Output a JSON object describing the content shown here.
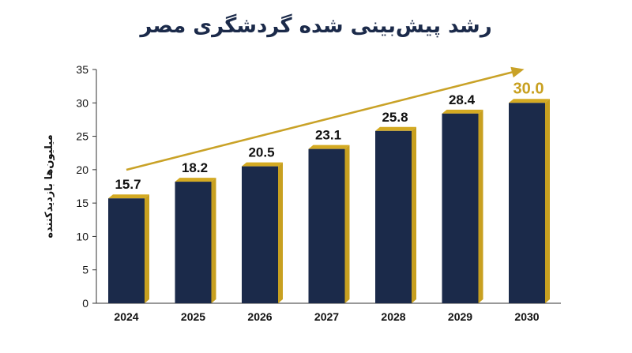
{
  "chart_data": {
    "type": "bar",
    "title": "رشد پیش‌بینی شده گردشگری مصر",
    "ylabel": "میلیون‌ها بازدیدکننده",
    "xlabel": "",
    "categories": [
      "2024",
      "2025",
      "2026",
      "2027",
      "2028",
      "2029",
      "2030"
    ],
    "values": [
      15.7,
      18.2,
      20.5,
      23.1,
      25.8,
      28.4,
      30.0
    ],
    "value_labels": [
      "15.7",
      "18.2",
      "20.5",
      "23.1",
      "25.8",
      "28.4",
      "30.0"
    ],
    "highlighted_category": "2030",
    "ylim": [
      0,
      35
    ],
    "yticks": [
      0,
      5,
      10,
      15,
      20,
      25,
      30,
      35
    ],
    "grid": false,
    "trend_arrow": true,
    "colors": {
      "bar": "#1b2a4a",
      "bar_side": "#c8a020",
      "bar_top": "#d4aa22",
      "arrow": "#c9a227",
      "highlight_label": "#c8a020",
      "title": "#1b2a4a"
    }
  }
}
